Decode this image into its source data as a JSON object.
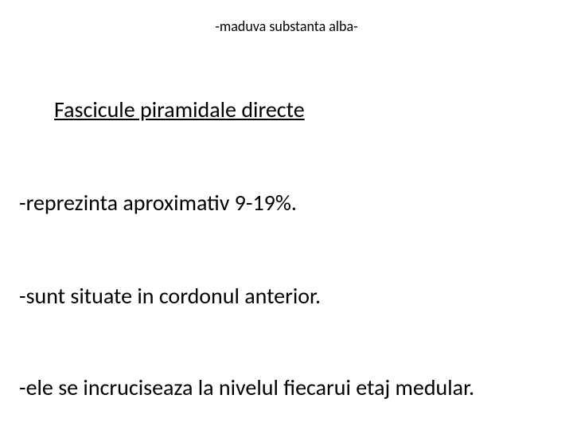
{
  "header": {
    "title": "-maduva substanta alba-",
    "fontsize": 18,
    "color": "#000000"
  },
  "heading": {
    "text": "Fascicule piramidale directe",
    "fontsize": 28,
    "underline": true,
    "color": "#000000"
  },
  "bullets": [
    {
      "text": "-reprezinta aproximativ 9-19%."
    },
    {
      "text": "-sunt situate in cordonul anterior."
    },
    {
      "text": "-ele se incruciseaza la nivelul fiecarui etaj medular."
    }
  ],
  "background_color": "#ffffff",
  "font_family": "Calibri",
  "body_fontsize": 28
}
